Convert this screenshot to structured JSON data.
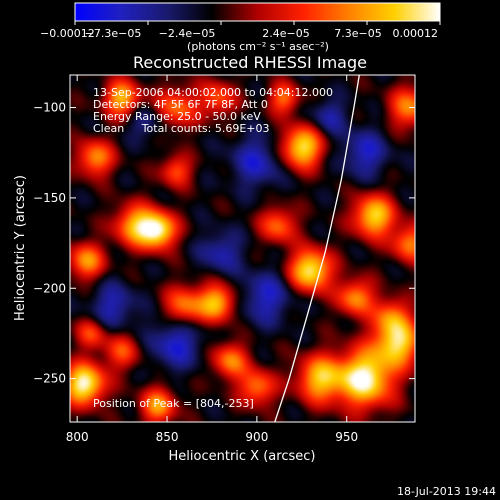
{
  "chart_data": {
    "type": "heatmap",
    "title": "Reconstructed RHESSI Image",
    "xlabel": "Heliocentric X (arcsec)",
    "ylabel": "Heliocentric Y (arcsec)",
    "xlim": [
      796,
      988
    ],
    "ylim": [
      -274,
      -82
    ],
    "x_ticks": [
      {
        "value": 800,
        "label": "800"
      },
      {
        "value": 850,
        "label": "850"
      },
      {
        "value": 900,
        "label": "900"
      },
      {
        "value": 950,
        "label": "950"
      }
    ],
    "y_ticks": [
      {
        "value": -100,
        "label": "−100"
      },
      {
        "value": -150,
        "label": "−150"
      },
      {
        "value": -200,
        "label": "−200"
      },
      {
        "value": -250,
        "label": "−250"
      }
    ],
    "colorbar": {
      "range": [
        -0.00012,
        0.00012
      ],
      "tick_labels": [
        "−0.00012",
        "−7.3e−05",
        "−2.4e−05",
        "2.4e−05",
        "7.3e−05",
        "0.00012"
      ],
      "units_label": "(photons cm⁻² s⁻¹ asec⁻²)",
      "colors": [
        "#0000ff",
        "#2020c0",
        "#1a1a70",
        "#000000",
        "#b00000",
        "#ff2000",
        "#ff8000",
        "#ffd000",
        "#ffffff"
      ]
    },
    "info_lines": [
      "13-Sep-2006 04:00:02.000 to 04:04:12.000",
      "Detectors: 4F 5F 6F 7F 8F, Att 0",
      "Energy Range: 25.0 - 50.0 keV",
      "Clean     Total counts: 5.69E+03"
    ],
    "peak_label": "Position of Peak = [804,-253]",
    "limb_curve": [
      [
        910,
        -274
      ],
      [
        918,
        -250
      ],
      [
        928,
        -215
      ],
      [
        938,
        -180
      ],
      [
        947,
        -140
      ],
      [
        954,
        -100
      ],
      [
        957,
        -82
      ]
    ],
    "sources": [
      {
        "x": 804,
        "y": -253,
        "sigma": 8,
        "amp": 1.0
      },
      {
        "x": 825,
        "y": -95,
        "sigma": 7,
        "amp": 0.75
      },
      {
        "x": 855,
        "y": -100,
        "sigma": 8,
        "amp": 0.55
      },
      {
        "x": 878,
        "y": -95,
        "sigma": 7,
        "amp": 0.5
      },
      {
        "x": 915,
        "y": -95,
        "sigma": 6,
        "amp": 0.55
      },
      {
        "x": 925,
        "y": -122,
        "sigma": 8,
        "amp": 0.9
      },
      {
        "x": 985,
        "y": -100,
        "sigma": 8,
        "amp": 0.6
      },
      {
        "x": 810,
        "y": -128,
        "sigma": 7,
        "amp": 0.65
      },
      {
        "x": 832,
        "y": -165,
        "sigma": 8,
        "amp": 0.7
      },
      {
        "x": 845,
        "y": -168,
        "sigma": 7,
        "amp": 0.95
      },
      {
        "x": 805,
        "y": -185,
        "sigma": 7,
        "amp": 0.65
      },
      {
        "x": 860,
        "y": -210,
        "sigma": 8,
        "amp": 0.6
      },
      {
        "x": 878,
        "y": -208,
        "sigma": 7,
        "amp": 0.75
      },
      {
        "x": 912,
        "y": -165,
        "sigma": 7,
        "amp": 0.55
      },
      {
        "x": 930,
        "y": -190,
        "sigma": 8,
        "amp": 0.95
      },
      {
        "x": 965,
        "y": -160,
        "sigma": 8,
        "amp": 0.85
      },
      {
        "x": 985,
        "y": -175,
        "sigma": 7,
        "amp": 0.6
      },
      {
        "x": 955,
        "y": -205,
        "sigma": 7,
        "amp": 0.65
      },
      {
        "x": 975,
        "y": -215,
        "sigma": 7,
        "amp": 0.5
      },
      {
        "x": 885,
        "y": -240,
        "sigma": 7,
        "amp": 0.6
      },
      {
        "x": 900,
        "y": -255,
        "sigma": 7,
        "amp": 0.6
      },
      {
        "x": 935,
        "y": -250,
        "sigma": 9,
        "amp": 0.75
      },
      {
        "x": 960,
        "y": -250,
        "sigma": 11,
        "amp": 1.0
      },
      {
        "x": 978,
        "y": -230,
        "sigma": 9,
        "amp": 0.85
      },
      {
        "x": 845,
        "y": -265,
        "sigma": 7,
        "amp": 0.65
      },
      {
        "x": 825,
        "y": -235,
        "sigma": 7,
        "amp": 0.45
      },
      {
        "x": 855,
        "y": -135,
        "sigma": 6,
        "amp": 0.5
      },
      {
        "x": 808,
        "y": -225,
        "sigma": 6,
        "amp": 0.45
      }
    ],
    "negative_regions": [
      {
        "x": 855,
        "y": -230,
        "sigma": 10,
        "amp": 0.55
      },
      {
        "x": 900,
        "y": -130,
        "sigma": 10,
        "amp": 0.5
      },
      {
        "x": 960,
        "y": -125,
        "sigma": 9,
        "amp": 0.5
      },
      {
        "x": 820,
        "y": -210,
        "sigma": 9,
        "amp": 0.45
      },
      {
        "x": 905,
        "y": -205,
        "sigma": 10,
        "amp": 0.5
      },
      {
        "x": 940,
        "y": -105,
        "sigma": 7,
        "amp": 0.4
      },
      {
        "x": 880,
        "y": -180,
        "sigma": 8,
        "amp": 0.45
      },
      {
        "x": 838,
        "y": -108,
        "sigma": 7,
        "amp": 0.35
      }
    ]
  },
  "footer_timestamp": "18-Jul-2013 19:44"
}
